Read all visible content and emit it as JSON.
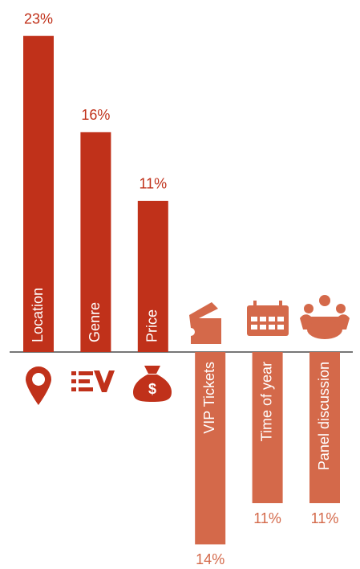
{
  "chart_data": {
    "type": "bar",
    "categories": [
      "Location",
      "Genre",
      "Price",
      "VIP Tickets",
      "Time of year",
      "Panel discussion"
    ],
    "series": [
      {
        "color": "#c0311a",
        "direction": "up",
        "values": [
          23,
          16,
          11,
          null,
          null,
          null
        ],
        "value_labels": [
          "23%",
          "16%",
          "11%",
          null,
          null,
          null
        ]
      },
      {
        "color": "#d4694a",
        "direction": "down",
        "values": [
          null,
          null,
          null,
          14,
          11,
          11
        ],
        "value_labels": [
          null,
          null,
          null,
          "14%",
          "11%",
          "11%"
        ]
      }
    ]
  }
}
